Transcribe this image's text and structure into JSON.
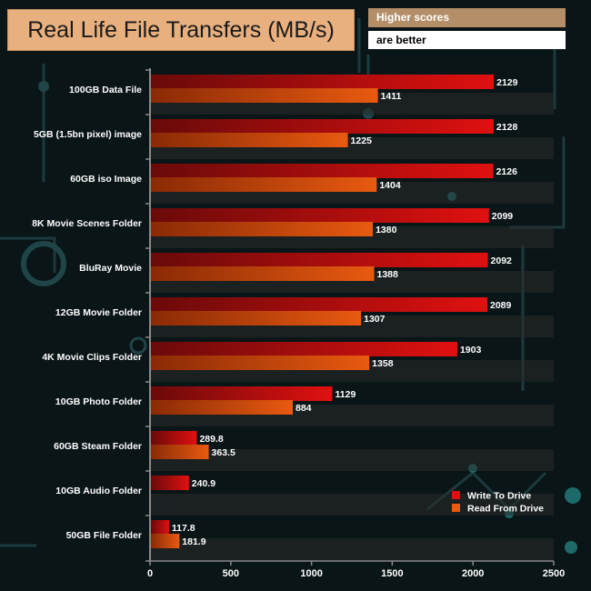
{
  "colors": {
    "write_bar": "#e01010",
    "read_bar": "#e85a10",
    "axis": "#8a8a8a",
    "label_text": "#ffffff",
    "title_bg": "#e8b07e",
    "note_bg": "#b38e68"
  },
  "notes": {
    "line1": "Higher scores",
    "line2": "are better"
  },
  "chart_data": {
    "type": "bar",
    "orientation": "horizontal",
    "title": "Real Life File Transfers (MB/s)",
    "xlabel": "",
    "ylabel": "",
    "xlim": [
      0,
      2500
    ],
    "ticks": [
      0,
      500,
      1000,
      1500,
      2000,
      2500
    ],
    "tick_labels": [
      "0",
      "500",
      "1000",
      "1500",
      "2000",
      "2500"
    ],
    "legend_position": "bottom-right",
    "categories": [
      "100GB Data File",
      "5GB (1.5bn pixel) image",
      "60GB iso Image",
      "8K Movie Scenes Folder",
      "BluRay Movie",
      "12GB Movie Folder",
      "4K Movie Clips Folder",
      "10GB Photo Folder",
      "60GB Steam Folder",
      "10GB Audio Folder",
      "50GB File Folder"
    ],
    "series": [
      {
        "name": "Write To  Drive",
        "values": [
          2129,
          2128,
          2126,
          2099,
          2092,
          2089,
          1903,
          1129,
          289.8,
          240.9,
          117.8
        ],
        "labels": [
          "2129",
          "2128",
          "2126",
          "2099",
          "2092",
          "2089",
          "1903",
          "1129",
          "289.8",
          "240.9",
          "117.8"
        ]
      },
      {
        "name": "Read From  Drive",
        "values": [
          1411,
          1225,
          1404,
          1380,
          1388,
          1307,
          1358,
          884,
          363.5,
          null,
          181.9
        ],
        "labels": [
          "1411",
          "1225",
          "1404",
          "1380",
          "1388",
          "1307",
          "1358",
          "884",
          "363.5",
          null,
          "181.9"
        ]
      }
    ]
  }
}
